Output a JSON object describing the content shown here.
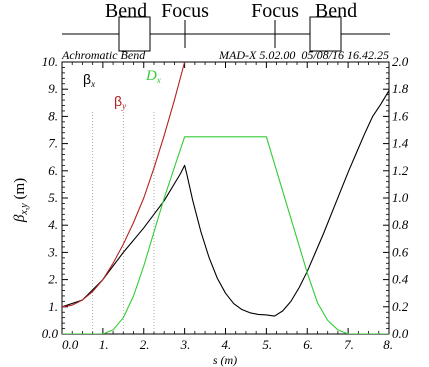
{
  "lattice": {
    "elements": [
      {
        "label": "Bend",
        "kind": "dipole",
        "s_start": 1.0,
        "s_end": 2.0
      },
      {
        "label": "Focus",
        "kind": "quadrupole",
        "s": 3.0
      },
      {
        "label": "Focus",
        "kind": "quadrupole",
        "s": 5.0
      },
      {
        "label": "Bend",
        "kind": "dipole",
        "s_start": 6.0,
        "s_end": 7.0
      }
    ]
  },
  "header": {
    "left": "Achromatic Bend",
    "right": "MAD-X 5.02.00  05/08/16 16.42.25"
  },
  "colors": {
    "beta_x": "#000000",
    "beta_y": "#b22222",
    "dx": "#33cc33",
    "frame": "#000000",
    "grid_marker": "#999999"
  },
  "chart_data": {
    "type": "line",
    "xlabel": "s (m)",
    "ylabel": "β_{x,y} (m)",
    "xlim": [
      0.0,
      8.0
    ],
    "ylim_left": [
      0.0,
      10.0
    ],
    "ylim_right": [
      0.0,
      2.0
    ],
    "x_ticks": [
      "0.0",
      "1.",
      "2.",
      "3.",
      "4.",
      "5.",
      "6.",
      "7.",
      "8."
    ],
    "y_left_ticks": [
      "0.0",
      "1.",
      "2.",
      "3.",
      "4.",
      "5.",
      "6.",
      "7.",
      "8.",
      "9.",
      "10."
    ],
    "y_right_ticks": [
      "0.0",
      "0.2",
      "0.4",
      "0.6",
      "0.8",
      "1.0",
      "1.2",
      "1.4",
      "1.6",
      "1.8",
      "2.0"
    ],
    "legend": [
      {
        "main": "β",
        "sub": "x",
        "series": "beta_x"
      },
      {
        "main": "β",
        "sub": "y",
        "series": "beta_y"
      },
      {
        "main": "D",
        "sub": "x",
        "series": "dx"
      }
    ],
    "series": [
      {
        "name": "beta_x",
        "axis": "left",
        "x": [
          0,
          0.5,
          1,
          1.5,
          2,
          2.5,
          2.9,
          3.0,
          3.05,
          3.2,
          3.4,
          3.6,
          3.8,
          4.0,
          4.2,
          4.4,
          4.6,
          4.8,
          5.0,
          5.2,
          5.4,
          5.6,
          5.8,
          6.0,
          6.2,
          6.4,
          6.6,
          6.8,
          7.0,
          7.2,
          7.4,
          7.6,
          7.8,
          8.0
        ],
        "y": [
          1.0,
          1.25,
          2.0,
          3.0,
          3.9,
          4.9,
          5.9,
          6.2,
          5.9,
          4.9,
          3.75,
          2.8,
          2.05,
          1.5,
          1.12,
          0.9,
          0.78,
          0.72,
          0.7,
          0.66,
          0.85,
          1.2,
          1.7,
          2.3,
          3.0,
          3.7,
          4.45,
          5.2,
          5.95,
          6.65,
          7.35,
          8.0,
          8.45,
          8.95
        ]
      },
      {
        "name": "beta_y",
        "axis": "left",
        "x": [
          0,
          0.25,
          0.5,
          0.75,
          1.0,
          1.25,
          1.5,
          1.75,
          2.0,
          2.25,
          2.5,
          2.75,
          3.0
        ],
        "y": [
          1.0,
          1.06,
          1.25,
          1.56,
          2.0,
          2.6,
          3.3,
          4.1,
          5.0,
          6.1,
          7.3,
          8.6,
          10.0
        ]
      },
      {
        "name": "dx",
        "axis": "right",
        "x": [
          0,
          1.0,
          1.25,
          1.5,
          1.75,
          2.0,
          2.5,
          3.0,
          5.0,
          5.5,
          6.0,
          6.25,
          6.5,
          6.75,
          7.0,
          8.0
        ],
        "y": [
          0.0,
          0.0,
          0.03,
          0.12,
          0.28,
          0.5,
          1.0,
          1.45,
          1.45,
          0.95,
          0.45,
          0.23,
          0.1,
          0.03,
          0.0,
          0.0
        ]
      }
    ],
    "markers_x": [
      0.75,
      1.5,
      2.25
    ]
  }
}
